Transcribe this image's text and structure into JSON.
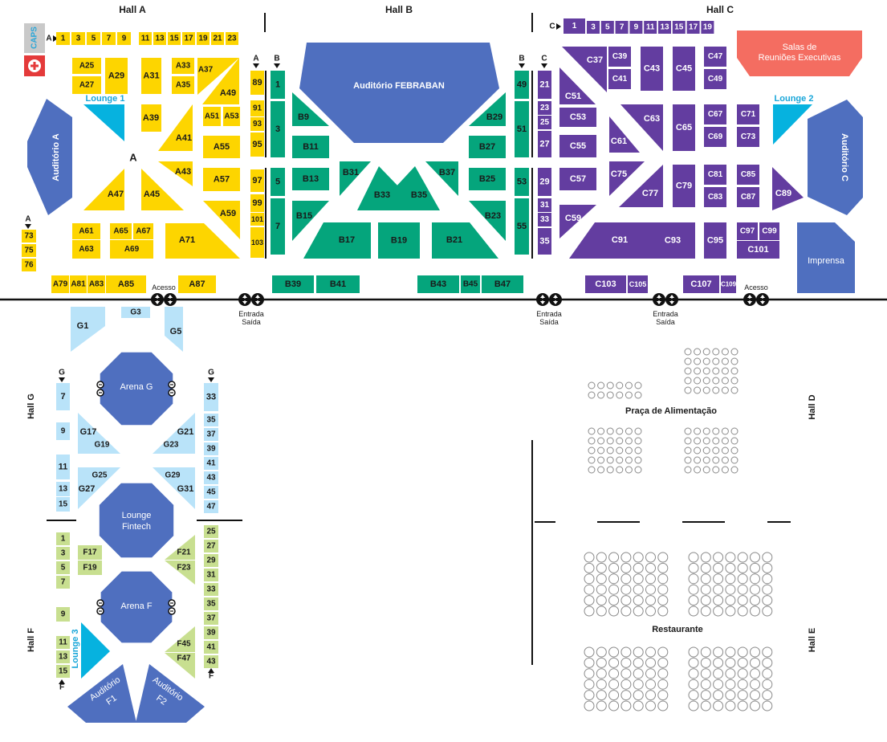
{
  "colors": {
    "hall_a": "#FDD500",
    "hall_b": "#05A57C",
    "hall_c": "#633DA0",
    "hall_g": "#B9E3F9",
    "hall_f": "#C8DF90",
    "auditorium": "#4F6FBF",
    "lounge": "#06B2DF",
    "salas": "#F46D61",
    "caps_gray": "#C9C9C9",
    "first_aid": "#E43A3A",
    "seat": "#8A8A8A"
  },
  "halls": {
    "a": "Hall  A",
    "b": "Hall  B",
    "c": "Hall  C",
    "d": "Hall D",
    "e": "Hall E",
    "f": "Hall F",
    "g": "Hall G"
  },
  "aisles": {
    "a": "A",
    "b": "B",
    "c": "C",
    "g": "G",
    "f": "F"
  },
  "services": {
    "caps": "CAPS",
    "first_aid_icon": "first-aid-cross",
    "access_icon": "up-down-arrows-icon"
  },
  "labels": {
    "lounge_1": "Lounge 1",
    "lounge_2": "Lounge 2",
    "lounge_3": "Lounge 3",
    "auditorio_a": "Auditório A",
    "auditorio_c": "Auditório C",
    "auditorio_febraban": "Auditório FEBRABAN",
    "salas_line1": "Salas de",
    "salas_line2": "Reuniões Executivas",
    "imprensa": "Imprensa",
    "arena_g": "Arena G",
    "arena_f": "Arena F",
    "lounge_fintech_line1": "Lounge",
    "lounge_fintech_line2": "Fintech",
    "auditorio_f1_line1": "Auditório",
    "auditorio_f1_line2": "F1",
    "auditorio_f2_line1": "Auditório",
    "auditorio_f2_line2": "F2",
    "acesso": "Acesso",
    "entrada": "Entrada",
    "saida": "Saída",
    "praca": "Praça de Alimentação",
    "restaurante": "Restaurante"
  },
  "booths": {
    "a_top_row": [
      "1",
      "3",
      "5",
      "7",
      "9",
      "11",
      "13",
      "15",
      "17",
      "19",
      "21",
      "23"
    ],
    "a_inner": [
      "A25",
      "A27",
      "A29",
      "A31",
      "A33",
      "A35",
      "A37",
      "A39",
      "A41",
      "A43",
      "A45",
      "A47",
      "A49",
      "A51",
      "A53",
      "A55",
      "A57",
      "A59",
      "A61",
      "A63",
      "A65",
      "A67",
      "A69",
      "A71",
      "A79",
      "A81",
      "A83",
      "A85",
      "A87"
    ],
    "a_center": "A",
    "a_left_col": [
      "73",
      "75",
      "76"
    ],
    "a_aisle_col": [
      "89",
      "91",
      "93",
      "95",
      "97",
      "99",
      "101",
      "103"
    ],
    "b_aisle_left": [
      "1",
      "3",
      "5",
      "7"
    ],
    "b_inner": [
      "B9",
      "B11",
      "B13",
      "B15",
      "B17",
      "B19",
      "B21",
      "B23",
      "B25",
      "B27",
      "B29",
      "B31",
      "B33",
      "B35",
      "B37",
      "B39",
      "B41",
      "B43",
      "B45",
      "B47"
    ],
    "b_aisle_right": [
      "49",
      "51",
      "53",
      "55"
    ],
    "c_top_row": [
      "1",
      "3",
      "5",
      "7",
      "9",
      "11",
      "13",
      "15",
      "17",
      "19"
    ],
    "c_aisle_col": [
      "21",
      "23",
      "25",
      "27",
      "29",
      "31",
      "33",
      "35"
    ],
    "c_inner": [
      "C37",
      "C39",
      "C41",
      "C43",
      "C45",
      "C47",
      "C49",
      "C51",
      "C53",
      "C55",
      "C57",
      "C59",
      "C61",
      "C63",
      "C65",
      "C67",
      "C69",
      "C71",
      "C73",
      "C75",
      "C77",
      "C79",
      "C81",
      "C83",
      "C85",
      "C87",
      "C89",
      "C91",
      "C93",
      "C95",
      "C97",
      "C99",
      "C101",
      "C103",
      "C105",
      "C107",
      "C109"
    ],
    "g_inner": [
      "G1",
      "G3",
      "G5",
      "G17",
      "G19",
      "G21",
      "G23",
      "G25",
      "G27",
      "G29",
      "G31"
    ],
    "g_left_col": [
      "7",
      "9",
      "11",
      "13",
      "15"
    ],
    "g_right_col": [
      "33",
      "35",
      "37",
      "39",
      "41",
      "43",
      "45",
      "47"
    ],
    "f_inner": [
      "F17",
      "F19",
      "F21",
      "F23",
      "F45",
      "F47"
    ],
    "f_left_col": [
      "1",
      "3",
      "5",
      "7",
      "9",
      "11",
      "13",
      "15"
    ],
    "f_right_col": [
      "25",
      "27",
      "29",
      "31",
      "33",
      "35",
      "37",
      "39",
      "41",
      "43"
    ]
  }
}
